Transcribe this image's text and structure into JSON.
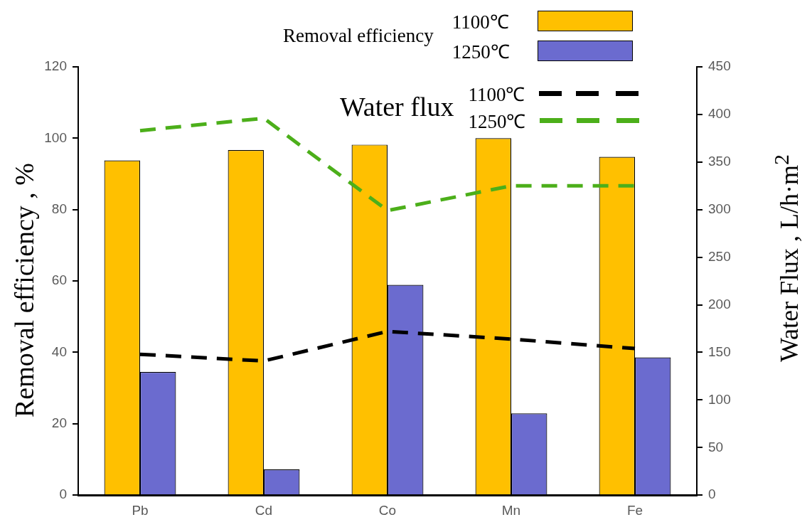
{
  "chart_data": {
    "type": "bar",
    "categories": [
      "Pb",
      "Cd",
      "Co",
      "Mn",
      "Fe"
    ],
    "series": [
      {
        "name": "1100℃",
        "color": "#ffc000",
        "values": [
          93.8,
          96.7,
          98.2,
          100,
          94.8
        ]
      },
      {
        "name": "1250℃",
        "color": "#6b6bcf",
        "values": [
          34.5,
          7.2,
          58.9,
          22.9,
          38.6
        ]
      },
      {
        "name": "1100℃",
        "type": "line",
        "axis": "y2",
        "color": "#000000",
        "values": [
          148,
          141,
          172,
          164,
          154
        ]
      },
      {
        "name": "1250℃",
        "type": "line",
        "axis": "y2",
        "color": "#4caf1a",
        "values": [
          383,
          396,
          299,
          325,
          325
        ]
      }
    ],
    "ylabel": "Removal efficiency , %",
    "y2label": "Water Flux , L/h·m$^{2}$",
    "ylim": [
      0,
      120
    ],
    "yticks": [
      0,
      20,
      40,
      60,
      80,
      100,
      120
    ],
    "y2lim": [
      0,
      450
    ],
    "y2ticks": [
      0,
      50,
      100,
      150,
      200,
      250,
      300,
      350,
      400,
      450
    ],
    "annotations": [
      "Removal efficiency",
      "Water flux"
    ],
    "line_style": "dashed",
    "marker": "none",
    "grid": false,
    "legend": "top right"
  }
}
